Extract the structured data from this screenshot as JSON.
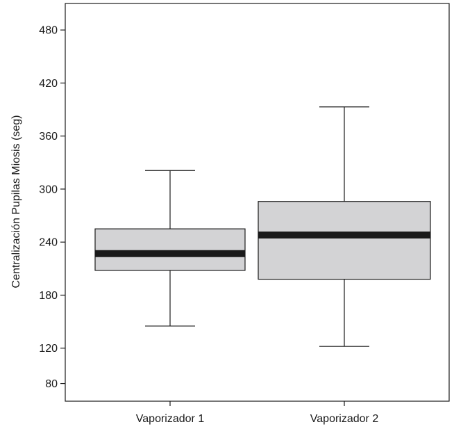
{
  "chart_data": {
    "type": "boxplot",
    "title": "",
    "xlabel": "",
    "ylabel": "Centralización Pupilas  Miosis (seg)",
    "ylim": [
      60,
      510
    ],
    "yticks": [
      80,
      120,
      180,
      240,
      300,
      360,
      420,
      480
    ],
    "ytick_labels": [
      "80",
      "120",
      "180",
      "240",
      "300",
      "360",
      "420",
      "480"
    ],
    "categories": [
      "Vaporizador 1",
      "Vaporizador 2"
    ],
    "boxes": [
      {
        "category": "Vaporizador 1",
        "min": 145,
        "q1": 208,
        "median": 227,
        "q3": 255,
        "max": 321
      },
      {
        "category": "Vaporizador 2",
        "min": 122,
        "q1": 198,
        "median": 248,
        "q3": 286,
        "max": 393
      }
    ],
    "box_fill": "#d3d3d5",
    "line_color": "#1a1a1a",
    "grid": false,
    "legend": "none"
  }
}
